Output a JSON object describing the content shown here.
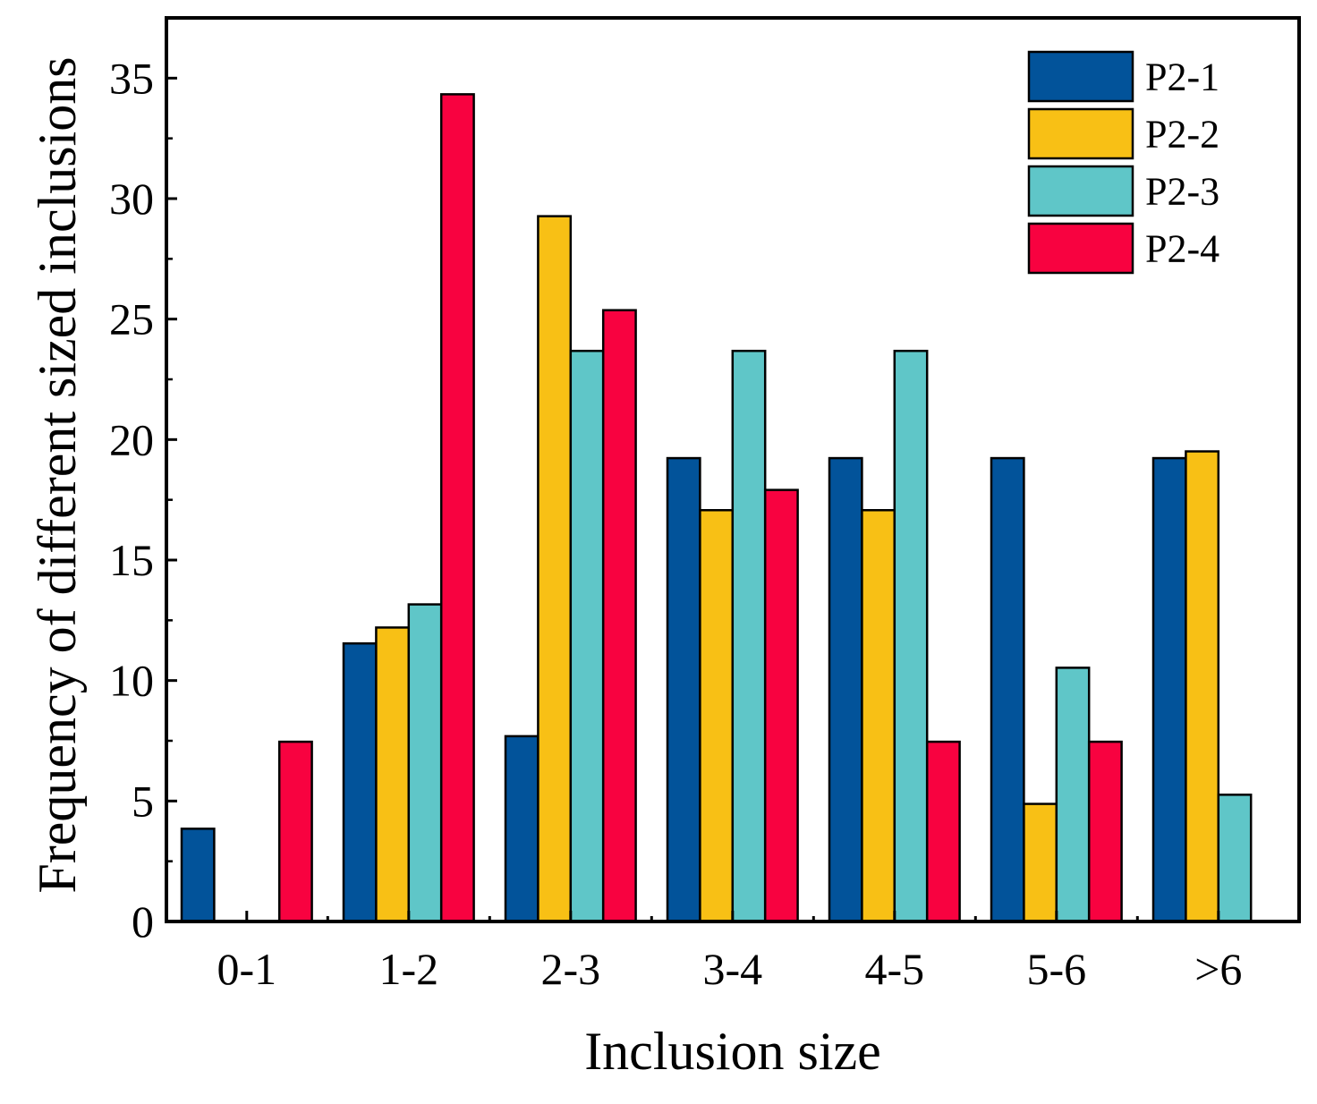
{
  "chart_data": {
    "type": "bar",
    "title": "",
    "xlabel": "Inclusion size",
    "ylabel": "Frequency of different sized inclusions",
    "ylim": [
      0,
      37.5
    ],
    "yticks": [
      "0",
      "5",
      "10",
      "15",
      "20",
      "25",
      "30",
      "35"
    ],
    "categories": [
      "0-1",
      "1-2",
      "2-3",
      "3-4",
      "4-5",
      "5-6",
      ">6"
    ],
    "legend_position": "top-right",
    "grid": false,
    "series": [
      {
        "name": "P2-1",
        "color": "#02539a",
        "values": [
          3.85,
          11.54,
          7.69,
          19.23,
          19.23,
          19.23,
          19.23
        ]
      },
      {
        "name": "P2-2",
        "color": "#f8c015",
        "values": [
          0,
          12.2,
          29.27,
          17.07,
          17.07,
          4.88,
          19.51
        ]
      },
      {
        "name": "P2-3",
        "color": "#5fc6c8",
        "values": [
          0,
          13.16,
          23.68,
          23.68,
          23.68,
          10.53,
          5.26
        ]
      },
      {
        "name": "P2-4",
        "color": "#f80240",
        "values": [
          7.46,
          34.33,
          25.37,
          17.91,
          7.46,
          7.46,
          0
        ]
      }
    ]
  }
}
